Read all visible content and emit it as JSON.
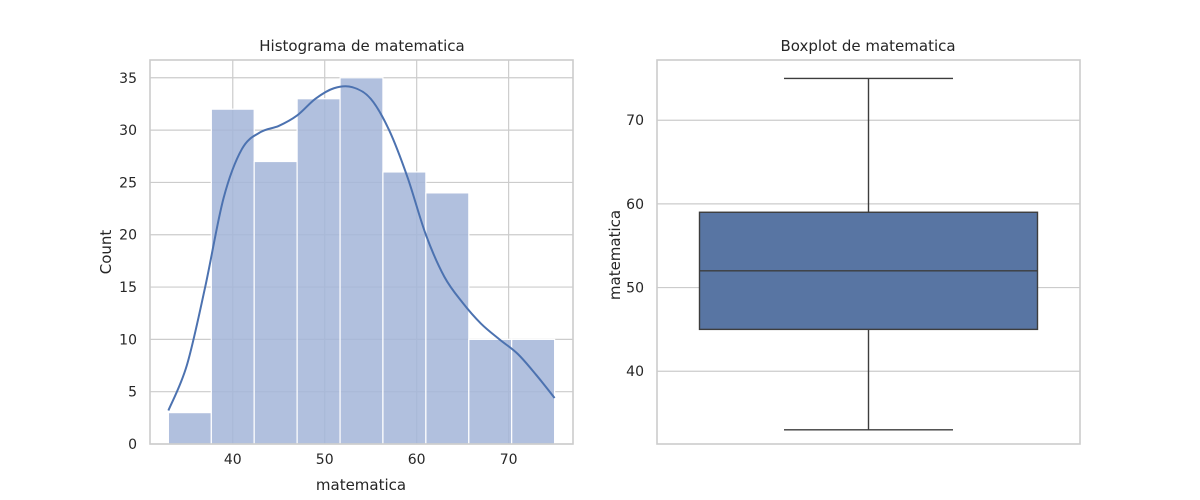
{
  "chart_data": [
    {
      "type": "bar",
      "subtype": "histogram-with-kde",
      "title": "Histograma de matematica",
      "xlabel": "matematica",
      "ylabel": "Count",
      "bin_edges": [
        33.0,
        37.67,
        42.33,
        47.0,
        51.67,
        56.33,
        61.0,
        65.67,
        70.33,
        75.0
      ],
      "values": [
        3,
        32,
        27,
        33,
        35,
        26,
        24,
        10,
        10
      ],
      "kde_x": [
        33,
        35,
        37,
        39,
        41,
        43,
        45,
        47,
        49,
        51,
        53,
        55,
        57,
        59,
        61,
        63,
        65,
        67,
        69,
        71,
        73,
        75
      ],
      "kde_y": [
        3.2,
        7.5,
        15.0,
        23.5,
        28.2,
        29.8,
        30.4,
        31.4,
        33.0,
        34.0,
        34.1,
        33.0,
        30.0,
        25.5,
        20.0,
        16.0,
        13.5,
        11.5,
        10.0,
        8.6,
        6.6,
        4.4
      ],
      "xticks": [
        40,
        50,
        60,
        70
      ],
      "yticks": [
        0,
        5,
        10,
        15,
        20,
        25,
        30,
        35
      ],
      "xlim": [
        31,
        77
      ],
      "ylim": [
        0,
        36.7
      ],
      "grid": true,
      "bar_color": "#a3b5d8",
      "line_color": "#4c72b0"
    },
    {
      "type": "boxplot",
      "title": "Boxplot de matematica",
      "xlabel": "",
      "ylabel": "matematica",
      "min": 33,
      "q1": 45,
      "median": 52,
      "q3": 59,
      "max": 75,
      "yticks": [
        40,
        50,
        60,
        70
      ],
      "ylim": [
        31.3,
        77.2
      ],
      "grid": true,
      "box_color": "#5875a3",
      "line_color": "#3d3d3d"
    }
  ]
}
